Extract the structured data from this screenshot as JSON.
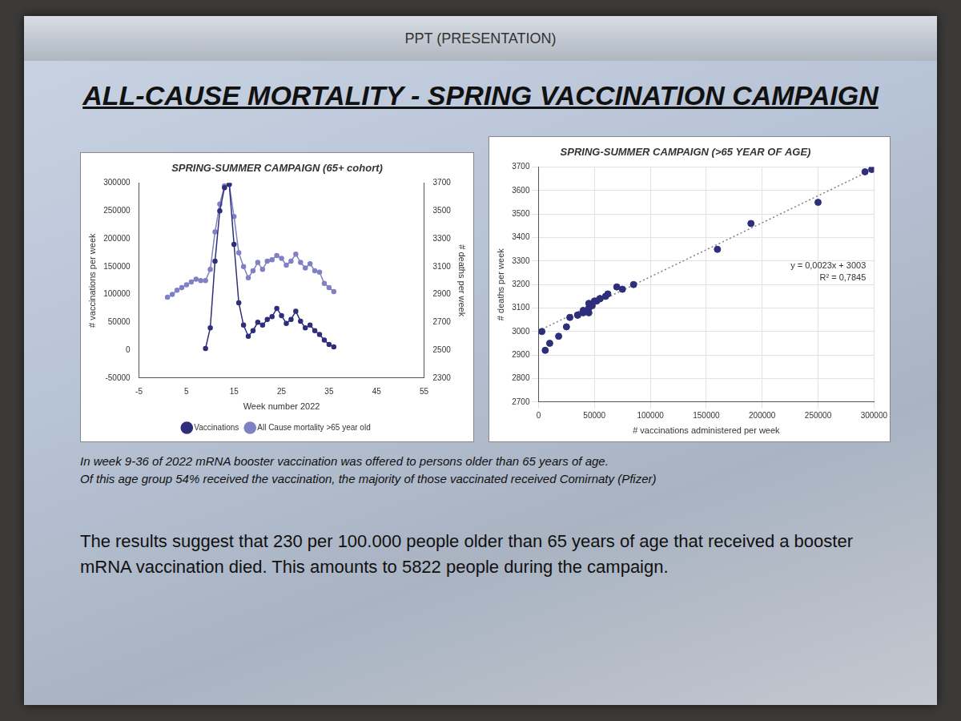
{
  "header": "PPT (PRESENTATION)",
  "title": "ALL-CAUSE MORTALITY - SPRING VACCINATION CAMPAIGN",
  "notes": [
    "In week 9-36 of 2022 mRNA booster vaccination was offered to persons older than 65 years of age.",
    "Of this age group 54% received the vaccination, the majority of those vaccinated received Comirnaty (Pfizer)"
  ],
  "conclusion": "The results suggest that 230 per 100.000 people older than 65 years of age that received a booster mRNA vaccination died. This amounts to 5822 people during the campaign.",
  "chart_data": [
    {
      "type": "line",
      "title": "SPRING-SUMMER CAMPAIGN (65+ cohort)",
      "x_label": "Week number 2022",
      "y_label": "# vaccinations per week",
      "y2_label": "# deaths per week",
      "xlim": [
        -5,
        55
      ],
      "xticks": [
        -5,
        5,
        15,
        25,
        35,
        45,
        55
      ],
      "ylim": [
        -50000,
        300000
      ],
      "yticks": [
        -50000,
        0,
        50000,
        100000,
        150000,
        200000,
        250000,
        300000
      ],
      "y2lim": [
        2300,
        3700
      ],
      "y2ticks": [
        2300,
        2500,
        2700,
        2900,
        3100,
        3300,
        3500,
        3700
      ],
      "grid": false,
      "legend": "bottom",
      "series": [
        {
          "name": "Vaccinations",
          "color": "#2e2e7a",
          "marker": "circle",
          "line_style": "solid",
          "x": [
            9,
            10,
            11,
            12,
            13,
            14,
            15,
            16,
            17,
            18,
            19,
            20,
            21,
            22,
            23,
            24,
            25,
            26,
            27,
            28,
            29,
            30,
            31,
            32,
            33,
            34,
            35,
            36
          ],
          "values": [
            3000,
            40000,
            160000,
            250000,
            292000,
            298000,
            190000,
            85000,
            45000,
            25000,
            35000,
            50000,
            45000,
            55000,
            60000,
            75000,
            62000,
            48000,
            55000,
            70000,
            52000,
            40000,
            45000,
            35000,
            28000,
            18000,
            10000,
            6000
          ]
        },
        {
          "name": "All Cause mortality >65 year old",
          "color": "#8080c4",
          "marker": "circle",
          "line_style": "solid",
          "axis": "y2",
          "x": [
            1,
            2,
            3,
            4,
            5,
            6,
            7,
            8,
            9,
            10,
            11,
            12,
            13,
            14,
            15,
            16,
            17,
            18,
            19,
            20,
            21,
            22,
            23,
            24,
            25,
            26,
            27,
            28,
            29,
            30,
            31,
            32,
            33,
            34,
            35,
            36
          ],
          "values": [
            2880,
            2900,
            2930,
            2950,
            2970,
            2990,
            3010,
            3000,
            3000,
            3080,
            3350,
            3550,
            3680,
            3690,
            3460,
            3200,
            3100,
            3020,
            3070,
            3130,
            3080,
            3140,
            3150,
            3180,
            3160,
            3110,
            3140,
            3190,
            3130,
            3090,
            3120,
            3070,
            3060,
            2980,
            2950,
            2920
          ]
        }
      ]
    },
    {
      "type": "scatter",
      "title": "SPRING-SUMMER CAMPAIGN (>65 YEAR OF AGE)",
      "x_label": "# vaccinations administered per week",
      "y_label": "# deaths per week",
      "xlim": [
        0,
        300000
      ],
      "xticks": [
        0,
        50000,
        100000,
        150000,
        200000,
        250000,
        300000
      ],
      "ylim": [
        2700,
        3700
      ],
      "yticks": [
        2700,
        2800,
        2900,
        3000,
        3100,
        3200,
        3300,
        3400,
        3500,
        3600,
        3700
      ],
      "grid": true,
      "color": "#2e2e7a",
      "marker": "circle",
      "x": [
        3000,
        40000,
        160000,
        250000,
        292000,
        298000,
        190000,
        85000,
        45000,
        25000,
        35000,
        50000,
        45000,
        55000,
        60000,
        75000,
        62000,
        48000,
        55000,
        70000,
        52000,
        40000,
        45000,
        35000,
        28000,
        18000,
        10000,
        6000
      ],
      "values": [
        3000,
        3080,
        3350,
        3550,
        3680,
        3690,
        3460,
        3200,
        3100,
        3020,
        3070,
        3130,
        3080,
        3140,
        3150,
        3180,
        3160,
        3110,
        3140,
        3190,
        3130,
        3090,
        3120,
        3070,
        3060,
        2980,
        2950,
        2920
      ],
      "trendline": {
        "slope": 0.0023,
        "intercept": 3003,
        "color": "#808080",
        "line_style": "dotted"
      },
      "annotations": [
        "y = 0,0023x + 3003",
        "R² = 0,7845"
      ]
    }
  ]
}
